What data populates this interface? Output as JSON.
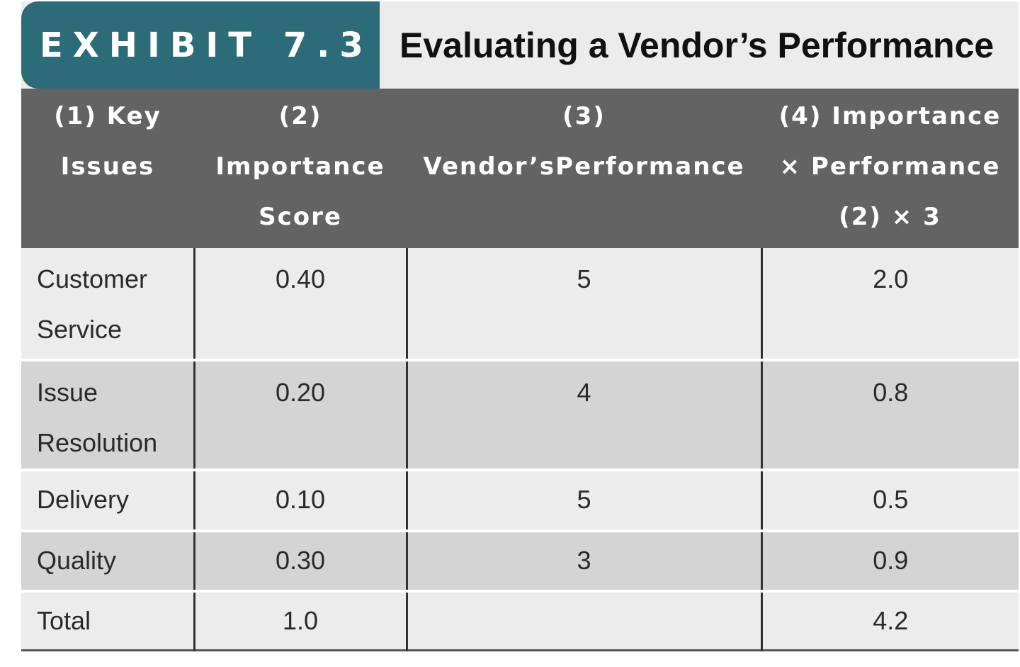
{
  "exhibit": {
    "label": "EXHIBIT 7.3",
    "title": "Evaluating a Vendor’s Performance",
    "colors": {
      "tag_background": "#2c6c78",
      "header_background": "#636363",
      "row_light": "#ececec",
      "row_dark": "#d4d4d4"
    }
  },
  "table": {
    "headers": [
      "(1) Key\nIssues",
      "(2)\nImportance\nScore",
      "(3)\nVendor’sPerformance",
      "(4) Importance\n× Performance\n(2) × 3"
    ],
    "rows": [
      {
        "issue": "Customer\nService",
        "importance": "0.40",
        "performance": "5",
        "product": "2.0"
      },
      {
        "issue": "Issue\nResolution",
        "importance": "0.20",
        "performance": "4",
        "product": "0.8"
      },
      {
        "issue": "Delivery",
        "importance": "0.10",
        "performance": "5",
        "product": "0.5"
      },
      {
        "issue": "Quality",
        "importance": "0.30",
        "performance": "3",
        "product": "0.9"
      },
      {
        "issue": "Total",
        "importance": "1.0",
        "performance": "",
        "product": "4.2"
      }
    ]
  }
}
